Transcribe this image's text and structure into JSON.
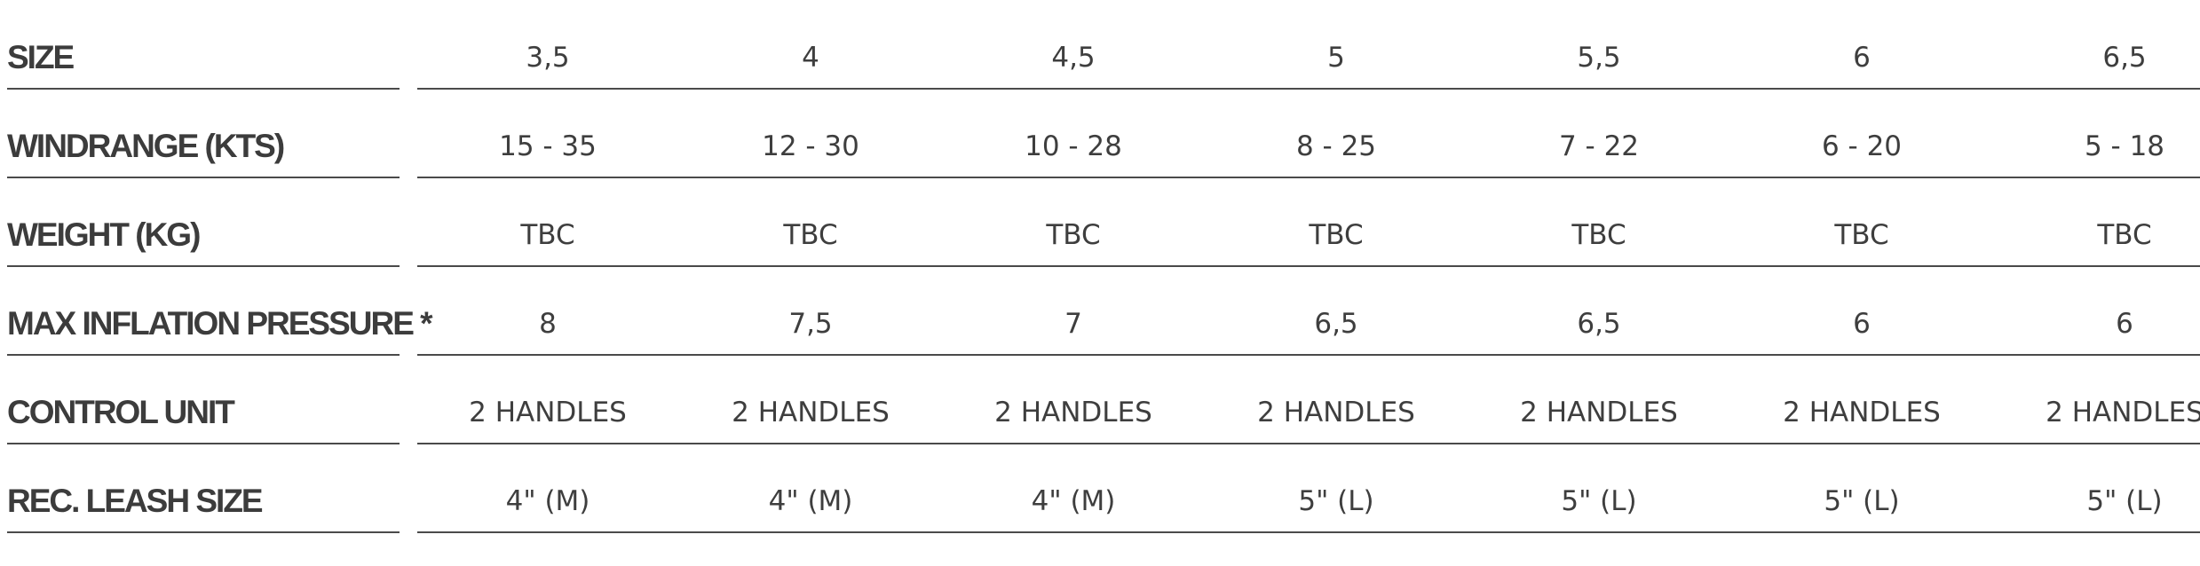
{
  "spec_table": {
    "rows": [
      {
        "label": "SIZE",
        "values": [
          "3,5",
          "4",
          "4,5",
          "5",
          "5,5",
          "6",
          "6,5"
        ]
      },
      {
        "label": "WINDRANGE (KTS)",
        "values": [
          "15 - 35",
          "12 - 30",
          "10 - 28",
          "8 - 25",
          "7 - 22",
          "6 - 20",
          "5 - 18"
        ]
      },
      {
        "label": "WEIGHT (KG)",
        "values": [
          "TBC",
          "TBC",
          "TBC",
          "TBC",
          "TBC",
          "TBC",
          "TBC"
        ]
      },
      {
        "label": "MAX INFLATION PRESSURE *",
        "values": [
          "8",
          "7,5",
          "7",
          "6,5",
          "6,5",
          "6",
          "6"
        ]
      },
      {
        "label": "CONTROL UNIT",
        "values": [
          "2 HANDLES",
          "2 HANDLES",
          "2 HANDLES",
          "2 HANDLES",
          "2 HANDLES",
          "2 HANDLES",
          "2 HANDLES"
        ]
      },
      {
        "label": "REC. LEASH SIZE",
        "values": [
          "4\" (M)",
          "4\" (M)",
          "4\" (M)",
          "5\" (L)",
          "5\" (L)",
          "5\" (L)",
          "5\" (L)"
        ]
      }
    ]
  }
}
